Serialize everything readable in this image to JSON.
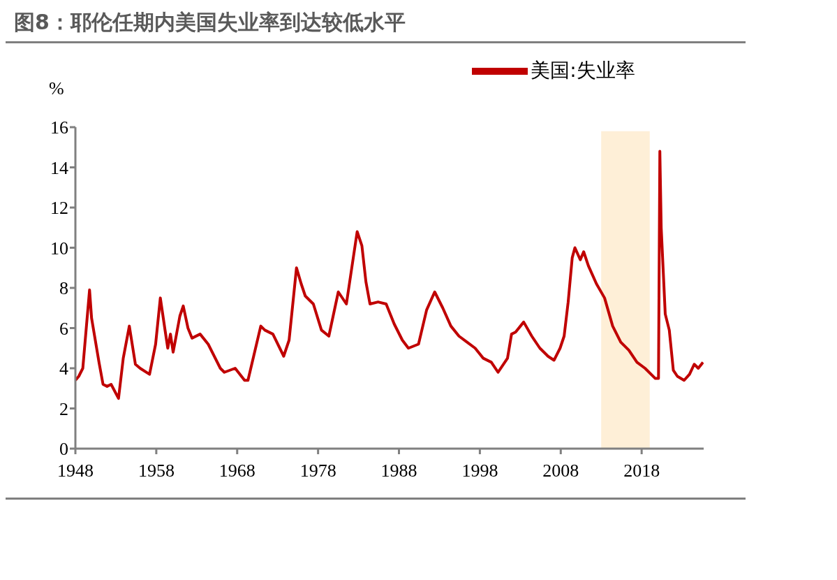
{
  "chart_data": {
    "type": "line",
    "title": "图8：耶伦任期内美国失业率到达较低水平",
    "ylabel": "%",
    "x": [
      "1948-01",
      "1948-06",
      "1948-12",
      "1949-10",
      "1950-01",
      "1950-12",
      "1951-06",
      "1951-12",
      "1952-06",
      "1953-05",
      "1953-12",
      "1954-09",
      "1955-06",
      "1956-01",
      "1957-03",
      "1957-12",
      "1958-07",
      "1959-02",
      "1959-06",
      "1959-10",
      "1960-02",
      "1960-12",
      "1961-05",
      "1961-12",
      "1962-06",
      "1963-06",
      "1964-06",
      "1965-12",
      "1966-06",
      "1967-10",
      "1968-12",
      "1969-05",
      "1970-12",
      "1971-06",
      "1972-06",
      "1973-10",
      "1974-06",
      "1975-05",
      "1975-12",
      "1976-06",
      "1977-06",
      "1978-06",
      "1979-05",
      "1980-07",
      "1981-07",
      "1982-11",
      "1983-06",
      "1983-12",
      "1984-06",
      "1985-06",
      "1986-06",
      "1987-06",
      "1988-06",
      "1989-03",
      "1990-06",
      "1991-06",
      "1992-06",
      "1993-06",
      "1994-06",
      "1995-06",
      "1996-06",
      "1997-06",
      "1998-06",
      "1999-06",
      "2000-04",
      "2001-06",
      "2001-12",
      "2002-06",
      "2003-06",
      "2004-06",
      "2005-06",
      "2006-06",
      "2007-03",
      "2007-12",
      "2008-06",
      "2008-12",
      "2009-06",
      "2009-10",
      "2010-06",
      "2010-11",
      "2011-06",
      "2012-06",
      "2013-06",
      "2014-06",
      "2015-06",
      "2016-06",
      "2017-06",
      "2018-06",
      "2019-09",
      "2020-02",
      "2020-04",
      "2020-06",
      "2020-12",
      "2021-06",
      "2021-12",
      "2022-06",
      "2023-04",
      "2023-12",
      "2024-07",
      "2025-01",
      "2025-08"
    ],
    "series": [
      {
        "name": "美国:失业率",
        "color": "#c00000",
        "values": [
          3.4,
          3.6,
          4.0,
          7.9,
          6.5,
          4.3,
          3.2,
          3.1,
          3.2,
          2.5,
          4.5,
          6.1,
          4.2,
          4.0,
          3.7,
          5.2,
          7.5,
          5.9,
          5.0,
          5.7,
          4.8,
          6.6,
          7.1,
          6.0,
          5.5,
          5.7,
          5.2,
          4.0,
          3.8,
          4.0,
          3.4,
          3.4,
          6.1,
          5.9,
          5.7,
          4.6,
          5.4,
          9.0,
          8.2,
          7.6,
          7.2,
          5.9,
          5.6,
          7.8,
          7.2,
          10.8,
          10.1,
          8.3,
          7.2,
          7.3,
          7.2,
          6.2,
          5.4,
          5.0,
          5.2,
          6.9,
          7.8,
          7.0,
          6.1,
          5.6,
          5.3,
          5.0,
          4.5,
          4.3,
          3.8,
          4.5,
          5.7,
          5.8,
          6.3,
          5.6,
          5.0,
          4.6,
          4.4,
          5.0,
          5.6,
          7.3,
          9.5,
          10.0,
          9.4,
          9.8,
          9.1,
          8.2,
          7.5,
          6.1,
          5.3,
          4.9,
          4.3,
          4.0,
          3.5,
          3.5,
          14.8,
          11.0,
          6.7,
          5.9,
          3.9,
          3.6,
          3.4,
          3.7,
          4.2,
          4.0,
          4.3
        ]
      }
    ],
    "xlim": [
      "1948-01",
      "2025-09"
    ],
    "xticks": [
      "1948",
      "1958",
      "1968",
      "1978",
      "1988",
      "1998",
      "2008",
      "2018"
    ],
    "ylim": [
      0,
      16
    ],
    "yticks": [
      0,
      2,
      4,
      6,
      8,
      10,
      12,
      14,
      16
    ],
    "bands": [
      {
        "axis": "x",
        "from": "2013-01",
        "to": "2019-01",
        "color": "#fde9c9"
      }
    ],
    "grid": false,
    "legend": "top",
    "marker": "none",
    "line_style": "solid"
  }
}
